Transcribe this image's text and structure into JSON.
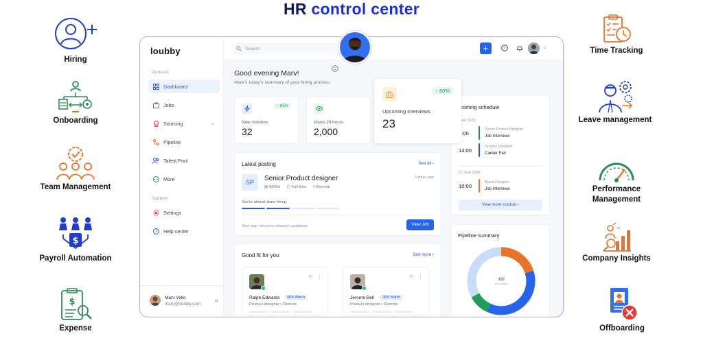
{
  "page_title": {
    "part1": "HR",
    "part2": "control center"
  },
  "left_features": [
    {
      "label": "Hiring",
      "icon": "user-plus-icon"
    },
    {
      "label": "Onboarding",
      "icon": "onboarding-network-icon"
    },
    {
      "label": "Team Management",
      "icon": "team-gear-icon"
    },
    {
      "label": "Payroll Automation",
      "icon": "payroll-icon"
    },
    {
      "label": "Expense",
      "icon": "expense-clipboard-icon"
    }
  ],
  "right_features": [
    {
      "label": "Time Tracking",
      "icon": "clipboard-clock-icon"
    },
    {
      "label": "Leave management",
      "icon": "leave-gears-icon"
    },
    {
      "label": "Performance Management",
      "icon": "gauge-icon"
    },
    {
      "label": "Company Insights",
      "icon": "bar-chart-person-icon"
    },
    {
      "label": "Offboarding",
      "icon": "offboarding-badge-icon"
    }
  ],
  "app": {
    "logo": "loubby",
    "search_placeholder": "Search",
    "sidebar": {
      "group_general": "General",
      "items": [
        {
          "label": "Dashboard",
          "icon": "grid-icon"
        },
        {
          "label": "Jobs",
          "icon": "briefcase-icon"
        },
        {
          "label": "Sourcing",
          "icon": "award-icon"
        },
        {
          "label": "Pipeline",
          "icon": "pipeline-icon"
        },
        {
          "label": "Talent Pool",
          "icon": "users-icon"
        },
        {
          "label": "More",
          "icon": "more-icon"
        }
      ],
      "group_support": "Support",
      "support_items": [
        {
          "label": "Settings",
          "icon": "gear-icon"
        },
        {
          "label": "Help center",
          "icon": "help-icon"
        }
      ],
      "user_name": "Marv Vello",
      "user_email": "marv@loubby.com"
    },
    "greeting": "Good evening Marv!",
    "greeting_sub": "Here's today's summary of your hiring process",
    "stats": [
      {
        "label": "New matches",
        "value": "32",
        "change": "↑ 85%",
        "color": "#2b59e0"
      },
      {
        "label": "Views 24 hours",
        "value": "2,000",
        "change": "",
        "color": "#16a34a"
      },
      {
        "label": "Upcoming interviews",
        "value": "23",
        "change": "↑ 60%",
        "color": "#f2a03a"
      }
    ],
    "latest_posting": {
      "title": "Latest posting",
      "see_all": "See all",
      "initials": "SP",
      "job_title": "Senior Product designer",
      "posted": "5 days ago",
      "rate": "$60/hr",
      "type": "Full time",
      "location": "Remote",
      "progress_note": "You're almost done hiring",
      "progress_done": 2,
      "progress_total": 4,
      "next_step": "Next step: interview selected candidates",
      "view_job": "View Job"
    },
    "good_fit": {
      "title": "Good fit for you",
      "see_more": "See more",
      "candidates": [
        {
          "name": "Ralph Edwards",
          "match": "98% Match",
          "role": "Product designer • Remote"
        },
        {
          "name": "Jerome Bell",
          "match": "98% Match",
          "role": "Product designer • Remote"
        }
      ]
    },
    "schedule": {
      "title": "pcoming schedule",
      "groups": [
        {
          "date": "June 2023",
          "events": [
            {
              "time": "1:00",
              "role": "Senior Product Designer",
              "type": "Job Interview",
              "color": "#2e8b57"
            },
            {
              "time": "14:00",
              "role": "Graphic Designer",
              "type": "Career Fair",
              "color": "#2b59e0"
            }
          ]
        },
        {
          "date": "17 June 2023",
          "events": [
            {
              "time": "10:00",
              "role": "Brand Designer",
              "type": "Job Interview",
              "color": "#e8742a"
            }
          ]
        }
      ],
      "button": "View more scedule"
    },
    "pipeline": {
      "title": "Pipeline summary",
      "center_value": "320",
      "center_label": "Total candidates"
    }
  },
  "chart_data": {
    "type": "pie",
    "title": "Pipeline summary",
    "total": 320,
    "slices": [
      {
        "value": 20,
        "color": "#e8742a"
      },
      {
        "value": 37,
        "color": "#2563eb"
      },
      {
        "value": 10,
        "color": "#1e9e5a"
      },
      {
        "value": 33,
        "color": "#c9dcfa"
      }
    ]
  }
}
